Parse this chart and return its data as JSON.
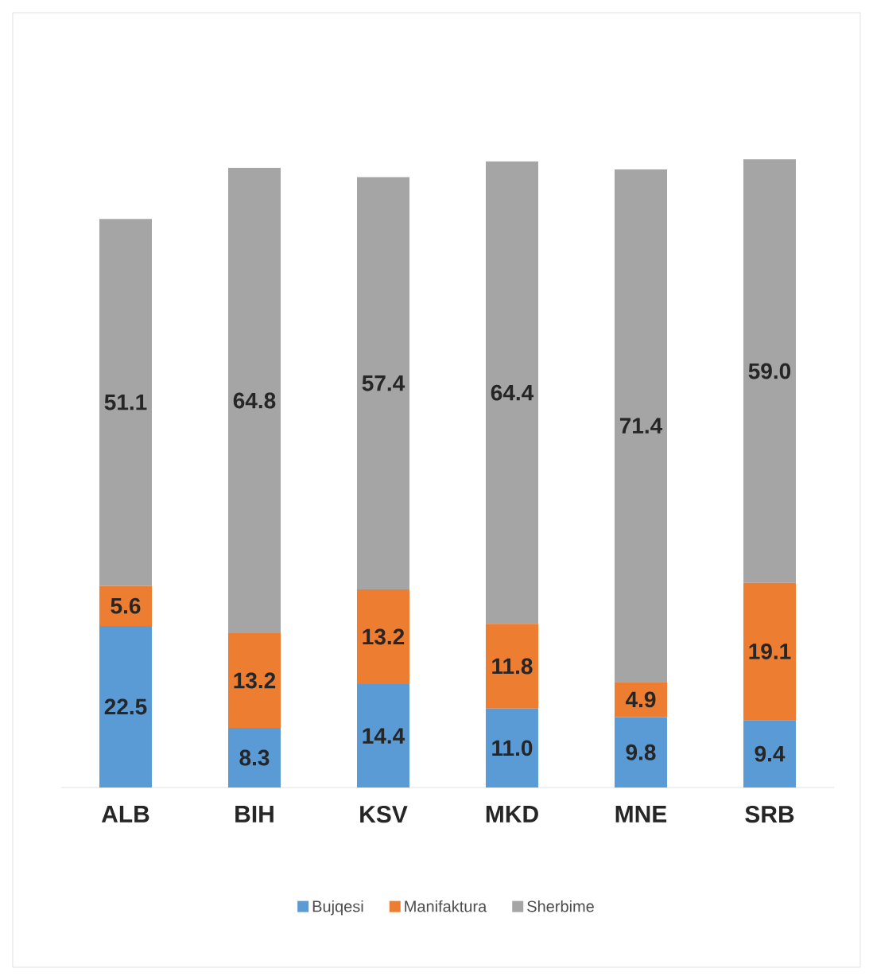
{
  "chart_data": {
    "type": "bar",
    "stacked": true,
    "legend": "bottom",
    "categories": [
      "ALB",
      "BIH",
      "KSV",
      "MKD",
      "MNE",
      "SRB"
    ],
    "series": [
      {
        "name": "Bujqesi",
        "color": "#5b9bd5",
        "values": [
          22.5,
          8.3,
          14.4,
          11.0,
          9.8,
          9.4
        ],
        "value_labels": [
          "22.5",
          "8.3",
          "14.4",
          "11.0",
          "9.8",
          "9.4"
        ]
      },
      {
        "name": "Manifaktura",
        "color": "#ed7d31",
        "values": [
          5.6,
          13.2,
          13.2,
          11.8,
          4.9,
          19.1
        ],
        "value_labels": [
          "5.6",
          "13.2",
          "13.2",
          "11.8",
          "4.9",
          "19.1"
        ]
      },
      {
        "name": "Sherbime",
        "color": "#a5a5a5",
        "values": [
          51.1,
          64.8,
          57.4,
          64.4,
          71.4,
          59.0
        ],
        "value_labels": [
          "51.1",
          "64.8",
          "57.4",
          "64.4",
          "71.4",
          "59.0"
        ]
      }
    ]
  }
}
